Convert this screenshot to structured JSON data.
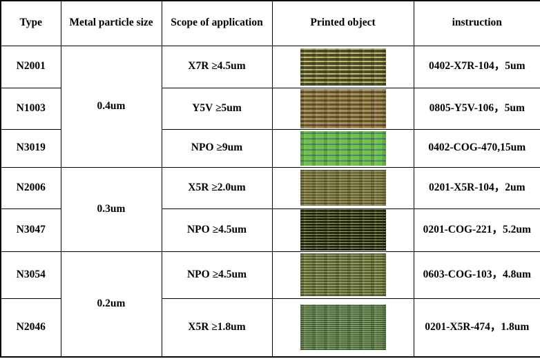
{
  "table": {
    "headers": {
      "type": "Type",
      "metal_particle_size": "Metal particle size",
      "scope": "Scope of application",
      "printed_object": "Printed object",
      "instruction": "instruction"
    },
    "groups": [
      {
        "size": "0.4um"
      },
      {
        "size": "0.3um"
      },
      {
        "size": "0.2um"
      }
    ],
    "rows": [
      {
        "type": "N2001",
        "scope": "X7R ≥4.5um",
        "instruction": "0402-X7R-104，5um",
        "image": {
          "desc": "dark olive film with thin light horizontal lines",
          "bg": "#4b4a27",
          "line": "#c3bc72"
        }
      },
      {
        "type": "N1003",
        "scope": "Y5V ≥5um",
        "instruction": "0805-Y5V-106，5um",
        "image": {
          "desc": "tan film with dark dashed horizontal stripes",
          "bg": "#a4915a",
          "line": "#63522c"
        }
      },
      {
        "type": "N3019",
        "scope": "NPO ≥9um",
        "instruction": "0402-COG-470,15um",
        "image": {
          "desc": "bright green film with dashed teal lines",
          "bg": "#74bd4e",
          "line": "#3e9160"
        }
      },
      {
        "type": "N2006",
        "scope": "X5R ≥2.0um",
        "instruction": "0201-X5R-104，2um",
        "image": {
          "desc": "khaki film with fine dark dashed lines",
          "bg": "#8d8852",
          "line": "#43401f"
        }
      },
      {
        "type": "N3047",
        "scope": "NPO ≥4.5um",
        "instruction": "0201-COG-221，5.2um",
        "image": {
          "desc": "near-black film with light dashed lines and green specks",
          "bg": "#20270f",
          "line": "#a3a866"
        }
      },
      {
        "type": "N3054",
        "scope": "NPO ≥4.5um",
        "instruction": "0603-COG-103，4.8um",
        "image": {
          "desc": "olive-green film with dense light lines",
          "bg": "#5a6334",
          "line": "#b4b873"
        }
      },
      {
        "type": "N2046",
        "scope": "X5R ≥1.8um",
        "instruction": "0201-X5R-474，1.8um",
        "image": {
          "desc": "medium green film with fine dashed texture",
          "bg": "#4c663c",
          "line": "#93b171"
        }
      }
    ]
  }
}
